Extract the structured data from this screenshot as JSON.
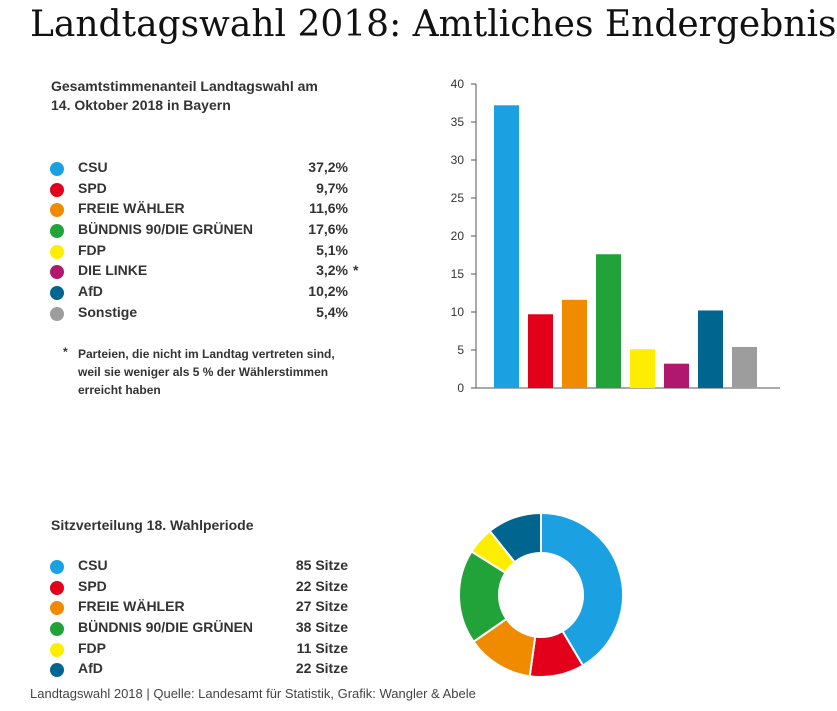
{
  "title": "Landtagswahl 2018: Amtliches Endergebnis",
  "vote_section": {
    "heading_line1": "Gesamtstimmenanteil Landtagswahl am",
    "heading_line2": "14. Oktober 2018 in Bayern",
    "footnote_marker": "*",
    "footnote": "Parteien, die nicht im Landtag vertreten sind, weil sie weniger als 5 % der Wählerstimmen erreicht haben"
  },
  "seat_section": {
    "heading": "Sitzverteilung 18. Wahlperiode"
  },
  "source": "Landtagswahl 2018 | Quelle: Landesamt für Statistik, Grafik: Wangler & Abele",
  "colors": {
    "CSU": "#1ba1e2",
    "SPD": "#e3001b",
    "FREIE WÄHLER": "#f08b00",
    "BÜNDNIS 90/DIE GRÜNEN": "#22a33a",
    "FDP": "#ffed00",
    "DIE LINKE": "#b0186e",
    "AfD": "#00658f",
    "Sonstige": "#9d9d9d"
  },
  "chart_data": [
    {
      "type": "bar",
      "title": "Gesamtstimmenanteil Landtagswahl am 14. Oktober 2018 in Bayern",
      "categories": [
        "CSU",
        "SPD",
        "FREIE WÄHLER",
        "BÜNDNIS 90/DIE GRÜNEN",
        "FDP",
        "DIE LINKE",
        "AfD",
        "Sonstige"
      ],
      "values": [
        37.2,
        9.7,
        11.6,
        17.6,
        5.1,
        3.2,
        10.2,
        5.4
      ],
      "value_labels": [
        "37,2%",
        "9,7%",
        "11,6%",
        "17,6%",
        "5,1%",
        "3,2%",
        "10,2%",
        "5,4%"
      ],
      "marks": [
        "",
        "",
        "",
        "",
        "",
        "*",
        "",
        ""
      ],
      "yticks": [
        0,
        5,
        10,
        15,
        20,
        25,
        30,
        35,
        40
      ],
      "ylim": [
        0,
        40
      ],
      "grid": false
    },
    {
      "type": "pie",
      "title": "Sitzverteilung 18. Wahlperiode",
      "categories": [
        "CSU",
        "SPD",
        "FREIE WÄHLER",
        "BÜNDNIS 90/DIE GRÜNEN",
        "FDP",
        "AfD"
      ],
      "values": [
        85,
        22,
        27,
        38,
        11,
        22
      ],
      "value_labels": [
        "85 Sitze",
        "22 Sitze",
        "27 Sitze",
        "38 Sitze",
        "11 Sitze",
        "22 Sitze"
      ],
      "donut": true
    }
  ]
}
